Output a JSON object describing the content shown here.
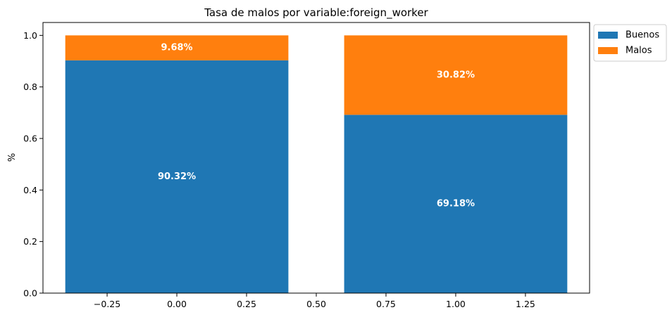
{
  "chart_data": {
    "type": "bar",
    "stacked": true,
    "title": "Tasa de malos por variable:foreign_worker",
    "xlabel": "",
    "ylabel": "%",
    "x": [
      0,
      1
    ],
    "bar_width": 0.8,
    "xlim": [
      -0.48,
      1.48
    ],
    "ylim": [
      0,
      1.05
    ],
    "xticks": [
      -0.25,
      0.0,
      0.25,
      0.5,
      0.75,
      1.0,
      1.25
    ],
    "xtick_labels": [
      "−0.25",
      "0.00",
      "0.25",
      "0.50",
      "0.75",
      "1.00",
      "1.25"
    ],
    "yticks": [
      0.0,
      0.2,
      0.4,
      0.6,
      0.8,
      1.0
    ],
    "ytick_labels": [
      "0.0",
      "0.2",
      "0.4",
      "0.6",
      "0.8",
      "1.0"
    ],
    "series": [
      {
        "name": "Buenos",
        "color": "#1f77b4",
        "values": [
          0.9032,
          0.6918
        ],
        "labels": [
          "90.32%",
          "69.18%"
        ]
      },
      {
        "name": "Malos",
        "color": "#ff7f0e",
        "values": [
          0.0968,
          0.3082
        ],
        "labels": [
          "9.68%",
          "30.82%"
        ]
      }
    ],
    "legend_position": "outside-top-right",
    "grid": false
  }
}
